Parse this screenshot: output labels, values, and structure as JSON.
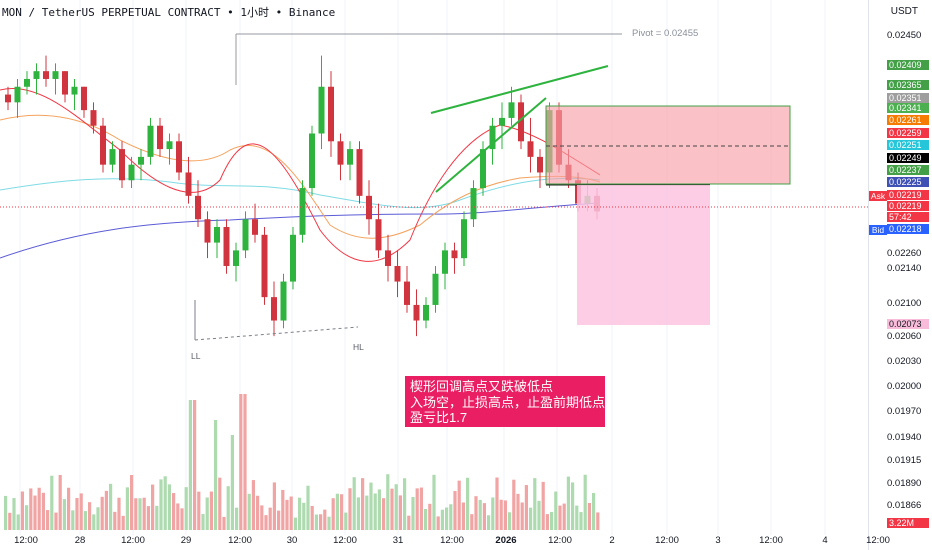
{
  "header": {
    "symbol": "MON",
    "pair": "TetherUS PERPETUAL CONTRACT",
    "interval": "1小时",
    "exchange": "Binance",
    "text": "MON / TetherUS PERPETUAL CONTRACT • 1小时 • Binance"
  },
  "currency": "USDT",
  "pivot_label": "Pivot = 0.02455",
  "swing_labels": {
    "low": "LL",
    "higher_low": "HL"
  },
  "annotation": {
    "lines": [
      "楔形回调高点又跌破低点",
      "入场空，止损高点，止盈前期低点",
      "盈亏比1.7"
    ],
    "color": "#e91e63"
  },
  "price_axis": {
    "ticks": [
      "0.02450",
      "0.02260",
      "0.02140",
      "0.02100",
      "0.02060",
      "0.02030",
      "0.02000",
      "0.01970",
      "0.01940",
      "0.01915",
      "0.01890",
      "0.01866"
    ],
    "labels": [
      {
        "text": "0.02409",
        "color": "#43a047"
      },
      {
        "text": "0.02365",
        "color": "#43a047"
      },
      {
        "text": "0.02351",
        "color": "#9e9e9e"
      },
      {
        "text": "0.02341",
        "color": "#4caf50"
      },
      {
        "text": "0.02261",
        "color": "#f57c00"
      },
      {
        "text": "0.02259",
        "color": "#f23645"
      },
      {
        "text": "0.02251",
        "color": "#26c6da"
      },
      {
        "text": "0.02249",
        "color": "#000000"
      },
      {
        "text": "0.02237",
        "color": "#43a047"
      },
      {
        "text": "0.02225",
        "color": "#3f51b5"
      },
      {
        "text": "0.02219",
        "color": "#f23645"
      },
      {
        "text": "0.02219",
        "color": "#f23645"
      },
      {
        "text": "57:42",
        "color": "#f23645"
      },
      {
        "text": "0.02218",
        "color": "#2962ff"
      },
      {
        "text": "0.02073",
        "color": "#f8bbd9"
      },
      {
        "text": "3.22M",
        "color": "#f23645"
      }
    ],
    "ask_label": "Ask",
    "bid_label": "Bid"
  },
  "time_axis": [
    "12:00",
    "28",
    "12:00",
    "29",
    "12:00",
    "30",
    "12:00",
    "31",
    "12:00",
    "2026",
    "12:00",
    "2",
    "12:00",
    "3",
    "12:00",
    "4",
    "12:00"
  ],
  "colors": {
    "up": "#26a69a",
    "down": "#ef5350",
    "stop_zone": "#f7a1a8",
    "target_zone": "#fbc4e0"
  },
  "chart_data": {
    "type": "candlestick",
    "interval": "1h",
    "candles": [
      [
        0.0237,
        0.0238,
        0.0235,
        0.0236
      ],
      [
        0.0236,
        0.0239,
        0.0234,
        0.0238
      ],
      [
        0.0238,
        0.024,
        0.0237,
        0.0239
      ],
      [
        0.0239,
        0.0241,
        0.0237,
        0.024
      ],
      [
        0.024,
        0.0242,
        0.0238,
        0.0239
      ],
      [
        0.0239,
        0.0241,
        0.0237,
        0.024
      ],
      [
        0.024,
        0.024,
        0.0236,
        0.0237
      ],
      [
        0.0237,
        0.0239,
        0.0235,
        0.0238
      ],
      [
        0.0238,
        0.0238,
        0.0234,
        0.0235
      ],
      [
        0.0235,
        0.0236,
        0.0232,
        0.0233
      ],
      [
        0.0233,
        0.0234,
        0.0227,
        0.0228
      ],
      [
        0.0228,
        0.0231,
        0.0227,
        0.023
      ],
      [
        0.023,
        0.0231,
        0.0225,
        0.0226
      ],
      [
        0.0226,
        0.0229,
        0.0225,
        0.0228
      ],
      [
        0.0228,
        0.023,
        0.0226,
        0.0229
      ],
      [
        0.0229,
        0.0234,
        0.0228,
        0.0233
      ],
      [
        0.0233,
        0.0234,
        0.0229,
        0.023
      ],
      [
        0.023,
        0.0232,
        0.0228,
        0.0231
      ],
      [
        0.0231,
        0.0232,
        0.0226,
        0.0227
      ],
      [
        0.0227,
        0.0229,
        0.0223,
        0.0224
      ],
      [
        0.0224,
        0.0226,
        0.022,
        0.0221
      ],
      [
        0.0221,
        0.0222,
        0.0216,
        0.0218
      ],
      [
        0.0218,
        0.0221,
        0.0216,
        0.022
      ],
      [
        0.022,
        0.0221,
        0.0214,
        0.0215
      ],
      [
        0.0215,
        0.0218,
        0.0213,
        0.0217
      ],
      [
        0.0217,
        0.0222,
        0.0216,
        0.0221
      ],
      [
        0.0221,
        0.0223,
        0.0218,
        0.0219
      ],
      [
        0.0219,
        0.022,
        0.021,
        0.0211
      ],
      [
        0.0211,
        0.0213,
        0.0206,
        0.0208
      ],
      [
        0.0208,
        0.0214,
        0.0207,
        0.0213
      ],
      [
        0.0213,
        0.022,
        0.0212,
        0.0219
      ],
      [
        0.0219,
        0.0226,
        0.0218,
        0.0225
      ],
      [
        0.0225,
        0.0233,
        0.0224,
        0.0232
      ],
      [
        0.0232,
        0.0242,
        0.023,
        0.0238
      ],
      [
        0.0238,
        0.024,
        0.0229,
        0.0231
      ],
      [
        0.0231,
        0.0232,
        0.0226,
        0.0228
      ],
      [
        0.0228,
        0.0231,
        0.0226,
        0.023
      ],
      [
        0.023,
        0.0231,
        0.0223,
        0.0224
      ],
      [
        0.0224,
        0.0226,
        0.0219,
        0.0221
      ],
      [
        0.0221,
        0.0223,
        0.0216,
        0.0217
      ],
      [
        0.0217,
        0.0219,
        0.0213,
        0.0215
      ],
      [
        0.0215,
        0.0217,
        0.0211,
        0.0213
      ],
      [
        0.0213,
        0.0215,
        0.0209,
        0.021
      ],
      [
        0.021,
        0.0212,
        0.0206,
        0.0208
      ],
      [
        0.0208,
        0.0211,
        0.0207,
        0.021
      ],
      [
        0.021,
        0.0215,
        0.0209,
        0.0214
      ],
      [
        0.0214,
        0.0218,
        0.0212,
        0.0217
      ],
      [
        0.0217,
        0.0218,
        0.0214,
        0.0216
      ],
      [
        0.0216,
        0.0222,
        0.0215,
        0.0221
      ],
      [
        0.0221,
        0.0226,
        0.022,
        0.0225
      ],
      [
        0.0225,
        0.0231,
        0.0224,
        0.023
      ],
      [
        0.023,
        0.0234,
        0.0228,
        0.0233
      ],
      [
        0.0233,
        0.0236,
        0.023,
        0.0234
      ],
      [
        0.0234,
        0.0238,
        0.0233,
        0.0236
      ],
      [
        0.0236,
        0.0237,
        0.023,
        0.0231
      ],
      [
        0.0231,
        0.0234,
        0.0227,
        0.0229
      ],
      [
        0.0229,
        0.023,
        0.0225,
        0.0227
      ],
      [
        0.0227,
        0.0236,
        0.0225,
        0.0235
      ],
      [
        0.0235,
        0.0236,
        0.0227,
        0.0228
      ],
      [
        0.0228,
        0.023,
        0.0225,
        0.0226
      ],
      [
        0.0226,
        0.0227,
        0.0222,
        0.0223
      ],
      [
        0.0223,
        0.0226,
        0.0222,
        0.0224
      ],
      [
        0.0224,
        0.0225,
        0.0221,
        0.0222
      ]
    ],
    "drawings": {
      "pivot_level": 0.02455,
      "stop_zone": [
        0.02237,
        0.02341
      ],
      "entry": 0.02225,
      "target": 0.02073
    }
  }
}
